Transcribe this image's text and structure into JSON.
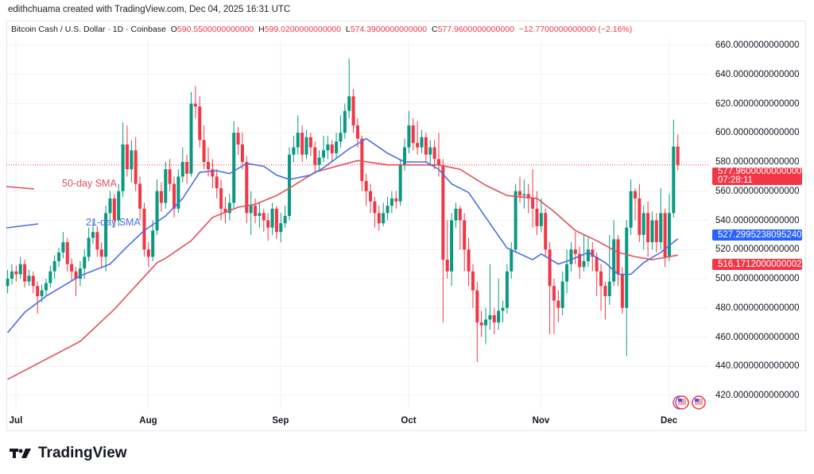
{
  "attribution": "edithchuama created with TradingView.com, Dec 04, 2025 16:31 UTC",
  "header": {
    "symbol": "Bitcoin Cash / U.S. Dollar · 1D · Coinbase",
    "o_label": "O",
    "o_value": "590.5500000000000",
    "h_label": "H",
    "h_value": "599.0200000000000",
    "l_label": "L",
    "l_value": "574.3900000000000",
    "c_label": "C",
    "c_value": "577.9600000000000",
    "change": "−12.7700000000000 (−2.16%)"
  },
  "tags": {
    "current_price": "577.9600000000000",
    "countdown": "07:28:11",
    "sma21_value": "527.2995238095240",
    "sma50_value": "516.1712000000002"
  },
  "annotations": {
    "sma50": "50-day SMA",
    "sma21": "21-day SMA"
  },
  "logo": {
    "text": "TradingView"
  },
  "colors": {
    "up": "#089981",
    "down": "#f23645",
    "sma21": "#4a6ee0",
    "sma50": "#e0505a",
    "grid": "#f0f1f3"
  },
  "icons": [
    "us-flag-event-icon",
    "us-flag-event-icon",
    "tradingview-logo-icon"
  ],
  "chart_data": {
    "type": "candlestick",
    "ylim": [
      410,
      665
    ],
    "yticks": [
      "660.0000000000000",
      "640.0000000000000",
      "620.0000000000000",
      "600.0000000000000",
      "580.0000000000000",
      "560.0000000000000",
      "540.0000000000000",
      "520.0000000000000",
      "500.0000000000000",
      "480.0000000000000",
      "460.0000000000000",
      "440.0000000000000",
      "420.0000000000000"
    ],
    "ytick_values": [
      660,
      640,
      620,
      600,
      580,
      560,
      540,
      520,
      500,
      480,
      460,
      440,
      420
    ],
    "xticks": [
      {
        "label": "Jul",
        "date": "2025-07-01"
      },
      {
        "label": "Aug",
        "date": "2025-08-01"
      },
      {
        "label": "Sep",
        "date": "2025-09-01"
      },
      {
        "label": "Oct",
        "date": "2025-10-01"
      },
      {
        "label": "Nov",
        "date": "2025-11-01"
      },
      {
        "label": "Dec",
        "date": "2025-12-01"
      }
    ],
    "grid": true,
    "candles_format": [
      "date",
      "open",
      "high",
      "low",
      "close"
    ],
    "candles": [
      [
        "2025-06-30",
        495,
        506,
        490,
        500
      ],
      [
        "2025-07-01",
        500,
        510,
        496,
        505
      ],
      [
        "2025-07-02",
        505,
        509,
        498,
        503
      ],
      [
        "2025-07-03",
        503,
        515,
        500,
        510
      ],
      [
        "2025-07-04",
        510,
        513,
        494,
        498
      ],
      [
        "2025-07-05",
        498,
        506,
        495,
        502
      ],
      [
        "2025-07-06",
        502,
        505,
        490,
        495
      ],
      [
        "2025-07-07",
        495,
        498,
        476,
        488
      ],
      [
        "2025-07-08",
        488,
        496,
        484,
        492
      ],
      [
        "2025-07-09",
        492,
        500,
        488,
        497
      ],
      [
        "2025-07-10",
        497,
        509,
        494,
        505
      ],
      [
        "2025-07-11",
        505,
        516,
        500,
        512
      ],
      [
        "2025-07-12",
        512,
        521,
        508,
        518
      ],
      [
        "2025-07-13",
        518,
        532,
        514,
        525
      ],
      [
        "2025-07-14",
        525,
        528,
        505,
        510
      ],
      [
        "2025-07-15",
        510,
        514,
        498,
        505
      ],
      [
        "2025-07-16",
        505,
        508,
        488,
        500
      ],
      [
        "2025-07-17",
        500,
        512,
        495,
        507
      ],
      [
        "2025-07-18",
        507,
        520,
        500,
        515
      ],
      [
        "2025-07-19",
        515,
        535,
        512,
        528
      ],
      [
        "2025-07-20",
        528,
        540,
        524,
        532
      ],
      [
        "2025-07-21",
        532,
        536,
        515,
        520
      ],
      [
        "2025-07-22",
        520,
        525,
        508,
        515
      ],
      [
        "2025-07-23",
        515,
        550,
        505,
        545
      ],
      [
        "2025-07-24",
        545,
        560,
        540,
        555
      ],
      [
        "2025-07-25",
        555,
        558,
        535,
        540
      ],
      [
        "2025-07-26",
        540,
        565,
        536,
        560
      ],
      [
        "2025-07-27",
        560,
        607,
        556,
        592
      ],
      [
        "2025-07-28",
        592,
        605,
        570,
        575
      ],
      [
        "2025-07-29",
        575,
        595,
        566,
        588
      ],
      [
        "2025-07-30",
        588,
        597,
        560,
        565
      ],
      [
        "2025-07-31",
        565,
        570,
        540,
        548
      ],
      [
        "2025-08-01",
        548,
        552,
        515,
        520
      ],
      [
        "2025-08-02",
        520,
        525,
        508,
        515
      ],
      [
        "2025-08-03",
        515,
        540,
        512,
        533
      ],
      [
        "2025-08-04",
        533,
        568,
        530,
        560
      ],
      [
        "2025-08-05",
        560,
        566,
        546,
        552
      ],
      [
        "2025-08-06",
        552,
        580,
        548,
        575
      ],
      [
        "2025-08-07",
        575,
        582,
        560,
        565
      ],
      [
        "2025-08-08",
        565,
        570,
        542,
        548
      ],
      [
        "2025-08-09",
        548,
        575,
        545,
        570
      ],
      [
        "2025-08-10",
        570,
        590,
        566,
        580
      ],
      [
        "2025-08-11",
        580,
        585,
        565,
        572
      ],
      [
        "2025-08-12",
        572,
        628,
        570,
        620
      ],
      [
        "2025-08-13",
        620,
        632,
        610,
        618
      ],
      [
        "2025-08-14",
        618,
        625,
        590,
        595
      ],
      [
        "2025-08-15",
        595,
        605,
        575,
        580
      ],
      [
        "2025-08-16",
        580,
        590,
        570,
        575
      ],
      [
        "2025-08-17",
        575,
        582,
        562,
        570
      ],
      [
        "2025-08-18",
        570,
        575,
        555,
        562
      ],
      [
        "2025-08-19",
        562,
        568,
        540,
        548
      ],
      [
        "2025-08-20",
        548,
        556,
        538,
        545
      ],
      [
        "2025-08-21",
        545,
        558,
        540,
        552
      ],
      [
        "2025-08-22",
        552,
        608,
        548,
        600
      ],
      [
        "2025-08-23",
        600,
        604,
        585,
        592
      ],
      [
        "2025-08-24",
        592,
        600,
        575,
        580
      ],
      [
        "2025-08-25",
        580,
        584,
        538,
        545
      ],
      [
        "2025-08-26",
        545,
        560,
        530,
        550
      ],
      [
        "2025-08-27",
        550,
        555,
        538,
        543
      ],
      [
        "2025-08-28",
        543,
        552,
        535,
        545
      ],
      [
        "2025-08-29",
        545,
        548,
        532,
        540
      ],
      [
        "2025-08-30",
        540,
        545,
        526,
        535
      ],
      [
        "2025-08-31",
        535,
        552,
        530,
        548
      ],
      [
        "2025-09-01",
        548,
        550,
        527,
        532
      ],
      [
        "2025-09-02",
        532,
        545,
        525,
        538
      ],
      [
        "2025-09-03",
        538,
        550,
        535,
        543
      ],
      [
        "2025-09-04",
        543,
        590,
        540,
        585
      ],
      [
        "2025-09-05",
        585,
        598,
        580,
        590
      ],
      [
        "2025-09-06",
        590,
        612,
        585,
        600
      ],
      [
        "2025-09-07",
        600,
        605,
        580,
        585
      ],
      [
        "2025-09-08",
        585,
        602,
        582,
        597
      ],
      [
        "2025-09-09",
        597,
        600,
        584,
        590
      ],
      [
        "2025-09-10",
        590,
        594,
        572,
        578
      ],
      [
        "2025-09-11",
        578,
        588,
        575,
        583
      ],
      [
        "2025-09-12",
        583,
        598,
        580,
        588
      ],
      [
        "2025-09-13",
        588,
        598,
        582,
        592
      ],
      [
        "2025-09-14",
        592,
        595,
        580,
        586
      ],
      [
        "2025-09-15",
        586,
        600,
        583,
        594
      ],
      [
        "2025-09-16",
        594,
        612,
        590,
        600
      ],
      [
        "2025-09-17",
        600,
        620,
        596,
        615
      ],
      [
        "2025-09-18",
        615,
        651,
        610,
        625
      ],
      [
        "2025-09-19",
        625,
        630,
        600,
        605
      ],
      [
        "2025-09-20",
        605,
        610,
        590,
        596
      ],
      [
        "2025-09-21",
        596,
        598,
        560,
        567
      ],
      [
        "2025-09-22",
        567,
        572,
        550,
        560
      ],
      [
        "2025-09-23",
        560,
        565,
        545,
        553
      ],
      [
        "2025-09-24",
        553,
        556,
        535,
        545
      ],
      [
        "2025-09-25",
        545,
        550,
        533,
        538
      ],
      [
        "2025-09-26",
        538,
        552,
        536,
        545
      ],
      [
        "2025-09-27",
        545,
        556,
        540,
        550
      ],
      [
        "2025-09-28",
        550,
        560,
        545,
        555
      ],
      [
        "2025-09-29",
        555,
        560,
        548,
        553
      ],
      [
        "2025-09-30",
        553,
        582,
        550,
        578
      ],
      [
        "2025-10-01",
        578,
        596,
        574,
        590
      ],
      [
        "2025-10-02",
        590,
        615,
        586,
        605
      ],
      [
        "2025-10-03",
        605,
        610,
        588,
        593
      ],
      [
        "2025-10-04",
        593,
        608,
        585,
        590
      ],
      [
        "2025-10-05",
        590,
        602,
        586,
        597
      ],
      [
        "2025-10-06",
        597,
        600,
        580,
        585
      ],
      [
        "2025-10-07",
        585,
        595,
        577,
        590
      ],
      [
        "2025-10-08",
        590,
        595,
        575,
        582
      ],
      [
        "2025-10-09",
        582,
        600,
        570,
        578
      ],
      [
        "2025-10-10",
        578,
        582,
        470,
        513
      ],
      [
        "2025-10-11",
        513,
        540,
        500,
        505
      ],
      [
        "2025-10-12",
        505,
        545,
        495,
        540
      ],
      [
        "2025-10-13",
        540,
        552,
        535,
        548
      ],
      [
        "2025-10-14",
        548,
        550,
        520,
        540
      ],
      [
        "2025-10-15",
        540,
        545,
        505,
        520
      ],
      [
        "2025-10-16",
        520,
        528,
        495,
        505
      ],
      [
        "2025-10-17",
        505,
        510,
        480,
        492
      ],
      [
        "2025-10-18",
        492,
        498,
        443,
        470
      ],
      [
        "2025-10-19",
        470,
        478,
        460,
        468
      ],
      [
        "2025-10-20",
        468,
        480,
        455,
        472
      ],
      [
        "2025-10-21",
        472,
        510,
        465,
        475
      ],
      [
        "2025-10-22",
        475,
        480,
        462,
        470
      ],
      [
        "2025-10-23",
        470,
        500,
        465,
        478
      ],
      [
        "2025-10-24",
        478,
        485,
        470,
        480
      ],
      [
        "2025-10-25",
        480,
        510,
        476,
        505
      ],
      [
        "2025-10-26",
        505,
        525,
        500,
        520
      ],
      [
        "2025-10-27",
        520,
        565,
        518,
        560
      ],
      [
        "2025-10-28",
        560,
        570,
        552,
        557
      ],
      [
        "2025-10-29",
        557,
        568,
        548,
        558
      ],
      [
        "2025-10-30",
        558,
        565,
        545,
        555
      ],
      [
        "2025-10-31",
        555,
        575,
        535,
        548
      ],
      [
        "2025-11-01",
        548,
        560,
        530,
        536
      ],
      [
        "2025-11-02",
        536,
        555,
        532,
        545
      ],
      [
        "2025-11-03",
        545,
        548,
        515,
        520
      ],
      [
        "2025-11-04",
        520,
        525,
        462,
        495
      ],
      [
        "2025-11-05",
        495,
        500,
        462,
        485
      ],
      [
        "2025-11-06",
        485,
        492,
        470,
        480
      ],
      [
        "2025-11-07",
        480,
        505,
        475,
        498
      ],
      [
        "2025-11-08",
        498,
        520,
        490,
        510
      ],
      [
        "2025-11-09",
        510,
        525,
        505,
        520
      ],
      [
        "2025-11-10",
        520,
        532,
        510,
        517
      ],
      [
        "2025-11-11",
        517,
        522,
        500,
        508
      ],
      [
        "2025-11-12",
        508,
        530,
        505,
        512
      ],
      [
        "2025-11-13",
        512,
        528,
        508,
        520
      ],
      [
        "2025-11-14",
        520,
        525,
        505,
        515
      ],
      [
        "2025-11-15",
        515,
        518,
        488,
        505
      ],
      [
        "2025-11-16",
        505,
        510,
        478,
        495
      ],
      [
        "2025-11-17",
        495,
        498,
        472,
        488
      ],
      [
        "2025-11-18",
        488,
        530,
        482,
        498
      ],
      [
        "2025-11-19",
        498,
        540,
        495,
        527
      ],
      [
        "2025-11-20",
        527,
        530,
        495,
        503
      ],
      [
        "2025-11-21",
        503,
        508,
        476,
        480
      ],
      [
        "2025-11-22",
        480,
        540,
        447,
        535
      ],
      [
        "2025-11-23",
        535,
        568,
        530,
        560
      ],
      [
        "2025-11-24",
        560,
        562,
        540,
        555
      ],
      [
        "2025-11-25",
        555,
        565,
        525,
        530
      ],
      [
        "2025-11-26",
        530,
        550,
        520,
        545
      ],
      [
        "2025-11-27",
        545,
        553,
        515,
        525
      ],
      [
        "2025-11-28",
        525,
        546,
        520,
        540
      ],
      [
        "2025-11-29",
        540,
        545,
        518,
        525
      ],
      [
        "2025-11-30",
        525,
        562,
        520,
        545
      ],
      [
        "2025-12-01",
        545,
        548,
        508,
        515
      ],
      [
        "2025-12-02",
        515,
        558,
        512,
        545
      ],
      [
        "2025-12-03",
        545,
        609,
        542,
        590.55
      ],
      [
        "2025-12-04",
        590.55,
        599.02,
        574.39,
        577.96
      ]
    ],
    "sma21": [
      [
        "2025-06-30",
        463
      ],
      [
        "2025-07-04",
        477
      ],
      [
        "2025-07-09",
        488
      ],
      [
        "2025-07-17",
        502
      ],
      [
        "2025-07-24",
        510
      ],
      [
        "2025-07-28",
        522
      ],
      [
        "2025-08-01",
        533
      ],
      [
        "2025-08-06",
        543
      ],
      [
        "2025-08-10",
        555
      ],
      [
        "2025-08-14",
        573
      ],
      [
        "2025-08-18",
        574
      ],
      [
        "2025-08-21",
        572
      ],
      [
        "2025-08-25",
        579
      ],
      [
        "2025-08-29",
        577
      ],
      [
        "2025-09-01",
        571
      ],
      [
        "2025-09-04",
        568
      ],
      [
        "2025-09-09",
        571
      ],
      [
        "2025-09-12",
        576
      ],
      [
        "2025-09-18",
        589
      ],
      [
        "2025-09-22",
        596
      ],
      [
        "2025-09-27",
        586
      ],
      [
        "2025-10-01",
        580
      ],
      [
        "2025-10-06",
        580
      ],
      [
        "2025-10-09",
        575
      ],
      [
        "2025-10-12",
        565
      ],
      [
        "2025-10-16",
        559
      ],
      [
        "2025-10-20",
        542
      ],
      [
        "2025-10-25",
        521
      ],
      [
        "2025-10-31",
        513
      ],
      [
        "2025-11-02",
        517
      ],
      [
        "2025-11-06",
        510
      ],
      [
        "2025-11-09",
        513
      ],
      [
        "2025-11-13",
        518
      ],
      [
        "2025-11-17",
        511
      ],
      [
        "2025-11-20",
        503
      ],
      [
        "2025-11-23",
        503
      ],
      [
        "2025-11-26",
        511
      ],
      [
        "2025-11-30",
        518
      ],
      [
        "2025-12-04",
        527.2995
      ]
    ],
    "sma50": [
      [
        "2025-06-30",
        431
      ],
      [
        "2025-07-17",
        457
      ],
      [
        "2025-07-25",
        479
      ],
      [
        "2025-08-04",
        511
      ],
      [
        "2025-08-06",
        514
      ],
      [
        "2025-08-12",
        526
      ],
      [
        "2025-08-17",
        542
      ],
      [
        "2025-08-23",
        549
      ],
      [
        "2025-08-27",
        551
      ],
      [
        "2025-09-01",
        557
      ],
      [
        "2025-09-04",
        562
      ],
      [
        "2025-09-10",
        573
      ],
      [
        "2025-09-15",
        577
      ],
      [
        "2025-09-20",
        581
      ],
      [
        "2025-09-27",
        578
      ],
      [
        "2025-10-05",
        578
      ],
      [
        "2025-10-09",
        578
      ],
      [
        "2025-10-14",
        575
      ],
      [
        "2025-10-20",
        564
      ],
      [
        "2025-10-25",
        557
      ],
      [
        "2025-11-01",
        555
      ],
      [
        "2025-11-05",
        546
      ],
      [
        "2025-11-10",
        533
      ],
      [
        "2025-11-15",
        526
      ],
      [
        "2025-11-20",
        518
      ],
      [
        "2025-11-24",
        515
      ],
      [
        "2025-11-28",
        513
      ],
      [
        "2025-12-04",
        516.1712
      ]
    ]
  }
}
